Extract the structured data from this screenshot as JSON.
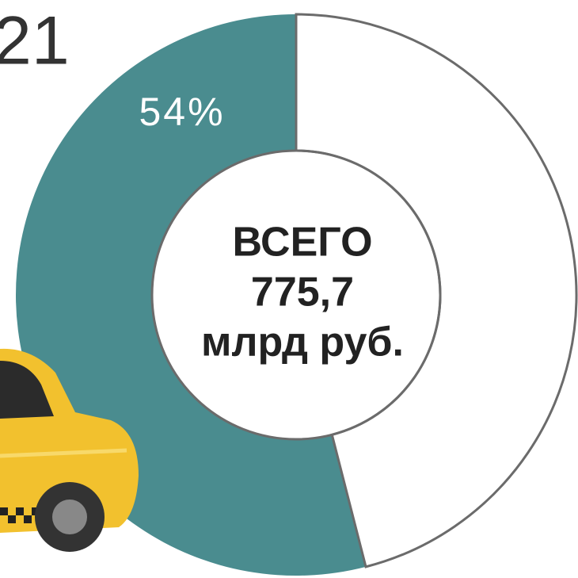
{
  "chart_data": {
    "type": "donut",
    "title": "21",
    "categories": [
      "",
      ""
    ],
    "values": [
      54,
      46
    ],
    "value_labels": [
      "54%",
      null
    ],
    "colors": [
      "#4a8c8f",
      "#ffffff"
    ],
    "direction": "counterclockwise",
    "center_text": [
      "ВСЕГО",
      "775,7",
      "млрд руб."
    ]
  }
}
